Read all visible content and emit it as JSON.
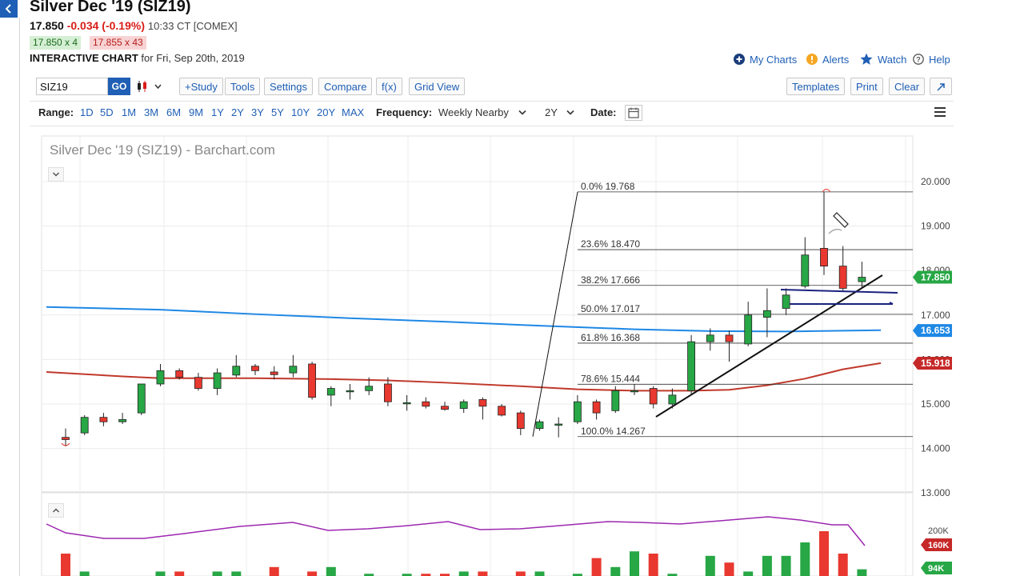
{
  "header": {
    "title": "Silver Dec '19 (SIZ19)",
    "last": "17.850",
    "change": "-0.034 (-0.19%)",
    "time": "10:33 CT [COMEX]",
    "bid": "17.850 x 4",
    "ask": "17.855 x 43",
    "interactive_label": "INTERACTIVE CHART",
    "date_text": "for Fri, Sep 20th, 2019"
  },
  "links": {
    "my_charts": "My Charts",
    "alerts": "Alerts",
    "watch": "Watch",
    "help": "Help"
  },
  "toolbar": {
    "symbol_value": "SIZ19",
    "go": "GO",
    "study": "+Study",
    "tools": "Tools",
    "settings": "Settings",
    "compare": "Compare",
    "fx": "f(x)",
    "grid_view": "Grid View",
    "templates": "Templates",
    "print": "Print",
    "clear": "Clear"
  },
  "rangebar": {
    "range_label": "Range:",
    "ranges": [
      "1D",
      "5D",
      "1M",
      "3M",
      "6M",
      "9M",
      "1Y",
      "2Y",
      "3Y",
      "5Y",
      "10Y",
      "20Y",
      "MAX"
    ],
    "frequency_label": "Frequency:",
    "frequency_value": "Weekly Nearby",
    "period_value": "2Y",
    "date_label": "Date:"
  },
  "chart_data": {
    "type": "candlestick",
    "title": "Silver Dec '19 (SIZ19) - Barchart.com",
    "ylim": [
      13.0,
      20.4
    ],
    "y_ticks": [
      "20.000",
      "19.000",
      "18.000",
      "17.000",
      "16.000",
      "15.000",
      "14.000",
      "13.000"
    ],
    "y_tick_values": [
      20,
      19,
      18,
      17,
      16,
      15,
      14,
      13
    ],
    "price_badges": [
      {
        "label": "17.850",
        "value": 17.85,
        "color": "#27a745"
      },
      {
        "label": "16.653",
        "value": 16.653,
        "color": "#1e88e5"
      },
      {
        "label": "15.918",
        "value": 15.918,
        "color": "#c62828"
      }
    ],
    "fibonacci": [
      {
        "label": "0.0% 19.768",
        "value": 19.768
      },
      {
        "label": "23.6% 18.470",
        "value": 18.47
      },
      {
        "label": "38.2% 17.666",
        "value": 17.666
      },
      {
        "label": "50.0% 17.017",
        "value": 17.017
      },
      {
        "label": "61.8% 16.368",
        "value": 16.368
      },
      {
        "label": "78.6% 15.444",
        "value": 15.444
      },
      {
        "label": "100.0% 14.267",
        "value": 14.267
      }
    ],
    "candles": [
      {
        "o": 14.25,
        "h": 14.45,
        "l": 14.05,
        "c": 14.2
      },
      {
        "o": 14.35,
        "h": 14.75,
        "l": 14.3,
        "c": 14.7
      },
      {
        "o": 14.7,
        "h": 14.8,
        "l": 14.5,
        "c": 14.6
      },
      {
        "o": 14.6,
        "h": 14.8,
        "l": 14.55,
        "c": 14.65
      },
      {
        "o": 14.8,
        "h": 15.45,
        "l": 14.75,
        "c": 15.45
      },
      {
        "o": 15.45,
        "h": 15.9,
        "l": 15.4,
        "c": 15.75
      },
      {
        "o": 15.75,
        "h": 15.8,
        "l": 15.55,
        "c": 15.6
      },
      {
        "o": 15.6,
        "h": 15.7,
        "l": 15.3,
        "c": 15.35
      },
      {
        "o": 15.35,
        "h": 15.8,
        "l": 15.2,
        "c": 15.7
      },
      {
        "o": 15.65,
        "h": 16.1,
        "l": 15.6,
        "c": 15.85
      },
      {
        "o": 15.85,
        "h": 15.9,
        "l": 15.65,
        "c": 15.75
      },
      {
        "o": 15.72,
        "h": 15.85,
        "l": 15.55,
        "c": 15.66
      },
      {
        "o": 15.7,
        "h": 16.1,
        "l": 15.6,
        "c": 15.85
      },
      {
        "o": 15.9,
        "h": 15.95,
        "l": 15.1,
        "c": 15.15
      },
      {
        "o": 15.2,
        "h": 15.4,
        "l": 14.95,
        "c": 15.35
      },
      {
        "o": 15.3,
        "h": 15.45,
        "l": 15.1,
        "c": 15.3
      },
      {
        "o": 15.3,
        "h": 15.6,
        "l": 15.2,
        "c": 15.4
      },
      {
        "o": 15.45,
        "h": 15.6,
        "l": 14.95,
        "c": 15.05
      },
      {
        "o": 15.02,
        "h": 15.2,
        "l": 14.85,
        "c": 15.03
      },
      {
        "o": 15.05,
        "h": 15.15,
        "l": 14.9,
        "c": 14.95
      },
      {
        "o": 14.95,
        "h": 15.05,
        "l": 14.85,
        "c": 14.88
      },
      {
        "o": 14.9,
        "h": 15.1,
        "l": 14.8,
        "c": 15.05
      },
      {
        "o": 15.1,
        "h": 15.15,
        "l": 14.65,
        "c": 14.95
      },
      {
        "o": 14.95,
        "h": 15.0,
        "l": 14.72,
        "c": 14.75
      },
      {
        "o": 14.8,
        "h": 14.85,
        "l": 14.3,
        "c": 14.45
      },
      {
        "o": 14.45,
        "h": 14.65,
        "l": 14.4,
        "c": 14.6
      },
      {
        "o": 14.55,
        "h": 14.7,
        "l": 14.25,
        "c": 14.55
      },
      {
        "o": 14.6,
        "h": 15.2,
        "l": 14.55,
        "c": 15.05
      },
      {
        "o": 15.05,
        "h": 15.1,
        "l": 14.65,
        "c": 14.8
      },
      {
        "o": 14.85,
        "h": 15.4,
        "l": 14.8,
        "c": 15.3
      },
      {
        "o": 15.3,
        "h": 15.45,
        "l": 15.2,
        "c": 15.3
      },
      {
        "o": 15.35,
        "h": 15.4,
        "l": 14.9,
        "c": 15.0
      },
      {
        "o": 15.0,
        "h": 15.35,
        "l": 14.9,
        "c": 15.2
      },
      {
        "o": 15.3,
        "h": 16.55,
        "l": 15.2,
        "c": 16.4
      },
      {
        "o": 16.4,
        "h": 16.7,
        "l": 16.2,
        "c": 16.55
      },
      {
        "o": 16.55,
        "h": 16.65,
        "l": 15.95,
        "c": 16.4
      },
      {
        "o": 16.35,
        "h": 17.3,
        "l": 16.3,
        "c": 17.0
      },
      {
        "o": 16.95,
        "h": 17.6,
        "l": 16.5,
        "c": 17.1
      },
      {
        "o": 17.15,
        "h": 17.6,
        "l": 17.0,
        "c": 17.45
      },
      {
        "o": 17.65,
        "h": 18.75,
        "l": 17.6,
        "c": 18.35
      },
      {
        "o": 18.5,
        "h": 19.77,
        "l": 17.9,
        "c": 18.1
      },
      {
        "o": 18.1,
        "h": 18.55,
        "l": 17.55,
        "c": 17.6
      },
      {
        "o": 17.75,
        "h": 18.2,
        "l": 17.6,
        "c": 17.85
      }
    ],
    "ma_blue": [
      [
        0,
        17.18
      ],
      [
        5,
        17.12
      ],
      [
        10,
        17.02
      ],
      [
        15,
        16.93
      ],
      [
        20,
        16.85
      ],
      [
        25,
        16.76
      ],
      [
        30,
        16.68
      ],
      [
        34,
        16.64
      ],
      [
        38,
        16.63
      ],
      [
        43,
        16.66
      ]
    ],
    "ma_red": [
      [
        0,
        15.72
      ],
      [
        3,
        15.62
      ],
      [
        5,
        15.58
      ],
      [
        10,
        15.58
      ],
      [
        14,
        15.56
      ],
      [
        17,
        15.53
      ],
      [
        20,
        15.48
      ],
      [
        24,
        15.4
      ],
      [
        27,
        15.33
      ],
      [
        30,
        15.3
      ],
      [
        33,
        15.3
      ],
      [
        35,
        15.32
      ],
      [
        37,
        15.42
      ],
      [
        39,
        15.57
      ],
      [
        41,
        15.78
      ],
      [
        43,
        15.92
      ]
    ],
    "volume_badges": [
      {
        "label": "200K",
        "color": "plain"
      },
      {
        "label": "160K",
        "color": "#c62828"
      },
      {
        "label": "94K",
        "color": "#27a745"
      }
    ]
  }
}
